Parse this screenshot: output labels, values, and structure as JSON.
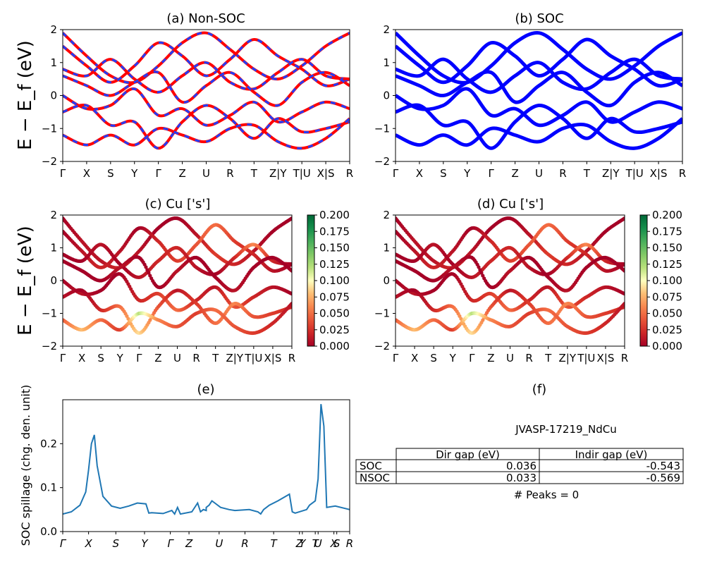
{
  "figure": {
    "panel_a_title": "(a) Non-SOC",
    "panel_b_title": "(b) SOC",
    "panel_c_title": "(c)  Cu ['s']",
    "panel_d_title": "(d) Cu ['s']",
    "panel_e_title": "(e)",
    "panel_f_title": "(f)",
    "ylabel_bands": "E − E_f (eV)",
    "ylabel_spillage": "SOC spillage (chg. den. unit)"
  },
  "colors": {
    "nonsoc_band": "#ff0000",
    "nonsoc_dash": "#1f3fff",
    "soc_band": "#0000ff",
    "spillage_line": "#1f77b4",
    "colormap": "RdYlGn"
  },
  "chart_data": [
    {
      "type": "line",
      "title": "(a) Non-SOC",
      "ylabel": "E − E_f (eV)",
      "ylim": [
        -2,
        2
      ],
      "yticks": [
        "−2",
        "−1",
        "0",
        "1",
        "2"
      ],
      "kpath_labels": [
        "Γ",
        "X",
        "S",
        "Y",
        "Γ",
        "Z",
        "U",
        "R",
        "T",
        "Z|Y",
        "T|U",
        "X|S",
        "R"
      ],
      "series": [
        {
          "values": [
            1.9,
            1.2,
            0.6,
            0.4,
            0.9,
            1.6,
            1.9,
            1.4,
            0.8,
            0.5,
            0.9,
            1.5,
            1.9
          ]
        },
        {
          "values": [
            1.5,
            0.9,
            0.4,
            0.9,
            1.6,
            1.2,
            0.6,
            1.1,
            1.7,
            1.2,
            0.8,
            0.3,
            0.5
          ]
        },
        {
          "values": [
            0.8,
            0.6,
            1.1,
            0.5,
            0.1,
            0.6,
            1.0,
            0.4,
            0.2,
            0.7,
            1.1,
            0.6,
            0.5
          ]
        },
        {
          "values": [
            0.6,
            0.3,
            0.0,
            0.4,
            0.7,
            -0.2,
            0.3,
            0.7,
            0.1,
            -0.3,
            0.4,
            0.7,
            0.3
          ]
        },
        {
          "values": [
            0.0,
            -0.4,
            -0.3,
            0.2,
            -0.6,
            -0.4,
            -0.9,
            -0.6,
            -0.2,
            -0.8,
            -0.5,
            -0.2,
            -0.4
          ]
        },
        {
          "values": [
            -0.5,
            -0.3,
            -0.9,
            -0.8,
            -1.6,
            -0.8,
            -0.3,
            -0.7,
            -1.3,
            -0.7,
            -1.1,
            -1.0,
            -0.8
          ]
        },
        {
          "values": [
            -1.2,
            -1.5,
            -1.2,
            -1.5,
            -1.0,
            -1.2,
            -1.4,
            -1.0,
            -0.9,
            -1.4,
            -1.6,
            -1.3,
            -0.7
          ]
        }
      ]
    },
    {
      "type": "line",
      "title": "(b) SOC",
      "ylim": [
        -2,
        2
      ],
      "yticks": [
        "−2",
        "−1",
        "0",
        "1",
        "2"
      ],
      "kpath_labels": [
        "Γ",
        "X",
        "S",
        "Y",
        "Γ",
        "Z",
        "U",
        "R",
        "T",
        "Z|Y",
        "T|U",
        "X|S",
        "R"
      ],
      "series": [
        {
          "values": [
            1.9,
            1.2,
            0.6,
            0.4,
            0.9,
            1.6,
            1.9,
            1.4,
            0.8,
            0.5,
            0.9,
            1.5,
            1.9
          ]
        },
        {
          "values": [
            1.5,
            0.9,
            0.4,
            0.9,
            1.6,
            1.2,
            0.6,
            1.1,
            1.7,
            1.2,
            0.8,
            0.3,
            0.5
          ]
        },
        {
          "values": [
            0.8,
            0.6,
            1.1,
            0.5,
            0.1,
            0.6,
            1.0,
            0.4,
            0.2,
            0.7,
            1.1,
            0.6,
            0.5
          ]
        },
        {
          "values": [
            0.6,
            0.3,
            0.0,
            0.4,
            0.7,
            -0.2,
            0.3,
            0.7,
            0.1,
            -0.3,
            0.4,
            0.7,
            0.3
          ]
        },
        {
          "values": [
            0.0,
            -0.4,
            -0.3,
            0.2,
            -0.6,
            -0.4,
            -0.9,
            -0.6,
            -0.2,
            -0.8,
            -0.5,
            -0.2,
            -0.4
          ]
        },
        {
          "values": [
            -0.5,
            -0.3,
            -0.9,
            -0.8,
            -1.6,
            -0.8,
            -0.3,
            -0.7,
            -1.3,
            -0.7,
            -1.1,
            -1.0,
            -0.8
          ]
        },
        {
          "values": [
            -1.2,
            -1.5,
            -1.2,
            -1.5,
            -1.0,
            -1.2,
            -1.4,
            -1.0,
            -0.9,
            -1.4,
            -1.6,
            -1.3,
            -0.7
          ]
        }
      ]
    },
    {
      "type": "scatter",
      "title": "(c)  Cu ['s']",
      "ylabel": "E − E_f (eV)",
      "ylim": [
        -2,
        2
      ],
      "yticks": [
        "−2",
        "−1",
        "0",
        "1",
        "2"
      ],
      "kpath_labels": [
        "Γ",
        "X",
        "S",
        "Y",
        "Γ",
        "Z",
        "U",
        "R",
        "T",
        "Z|Y",
        "T|U",
        "X|S",
        "R"
      ],
      "colorbar": {
        "min": 0.0,
        "max": 0.2,
        "ticks": [
          "0.000",
          "0.025",
          "0.050",
          "0.075",
          "0.100",
          "0.125",
          "0.150",
          "0.175",
          "0.200"
        ]
      },
      "series": [
        {
          "values": [
            1.9,
            1.2,
            0.6,
            0.4,
            0.9,
            1.6,
            1.9,
            1.4,
            0.8,
            0.5,
            0.9,
            1.5,
            1.9
          ],
          "weights": [
            0.0,
            0.01,
            0.01,
            0.02,
            0.01,
            0.0,
            0.0,
            0.01,
            0.03,
            0.02,
            0.01,
            0.0,
            0.0
          ]
        },
        {
          "values": [
            1.5,
            0.9,
            0.4,
            0.9,
            1.6,
            1.2,
            0.6,
            1.1,
            1.7,
            1.2,
            0.8,
            0.3,
            0.5
          ],
          "weights": [
            0.0,
            0.01,
            0.02,
            0.01,
            0.0,
            0.02,
            0.03,
            0.04,
            0.05,
            0.03,
            0.02,
            0.01,
            0.0
          ]
        },
        {
          "values": [
            0.8,
            0.6,
            1.1,
            0.5,
            0.1,
            0.6,
            1.0,
            0.4,
            0.2,
            0.7,
            1.1,
            0.6,
            0.5
          ],
          "weights": [
            0.0,
            0.0,
            0.01,
            0.0,
            0.01,
            0.02,
            0.02,
            0.01,
            0.0,
            0.02,
            0.06,
            0.02,
            0.0
          ]
        },
        {
          "values": [
            0.6,
            0.3,
            0.0,
            0.4,
            0.7,
            -0.2,
            0.3,
            0.7,
            0.1,
            -0.3,
            0.4,
            0.7,
            0.3
          ],
          "weights": [
            0.0,
            0.0,
            0.0,
            0.01,
            0.0,
            0.0,
            0.01,
            0.0,
            0.0,
            0.01,
            0.0,
            0.0,
            0.0
          ]
        },
        {
          "values": [
            0.0,
            -0.4,
            -0.3,
            0.2,
            -0.6,
            -0.4,
            -0.9,
            -0.6,
            -0.2,
            -0.8,
            -0.5,
            -0.2,
            -0.4
          ],
          "weights": [
            0.0,
            0.01,
            0.0,
            0.0,
            0.02,
            0.03,
            0.05,
            0.02,
            0.01,
            0.04,
            0.02,
            0.01,
            0.0
          ]
        },
        {
          "values": [
            -0.5,
            -0.3,
            -0.9,
            -0.8,
            -1.6,
            -0.8,
            -0.3,
            -0.7,
            -1.3,
            -0.7,
            -1.1,
            -1.0,
            -0.8
          ],
          "weights": [
            0.01,
            0.0,
            0.02,
            0.05,
            0.09,
            0.04,
            0.01,
            0.03,
            0.05,
            0.06,
            0.04,
            0.03,
            0.02
          ]
        },
        {
          "values": [
            -1.2,
            -1.5,
            -1.2,
            -1.5,
            -1.0,
            -1.2,
            -1.4,
            -1.0,
            -0.9,
            -1.4,
            -1.6,
            -1.3,
            -0.7
          ],
          "weights": [
            0.04,
            0.08,
            0.05,
            0.03,
            0.12,
            0.06,
            0.04,
            0.03,
            0.05,
            0.04,
            0.03,
            0.02,
            0.01
          ]
        }
      ]
    },
    {
      "type": "scatter",
      "title": "(d) Cu ['s']",
      "ylim": [
        -2,
        2
      ],
      "yticks": [
        "−2",
        "−1",
        "0",
        "1",
        "2"
      ],
      "kpath_labels": [
        "Γ",
        "X",
        "S",
        "Y",
        "Γ",
        "Z",
        "U",
        "R",
        "T",
        "Z|Y",
        "T|U",
        "X|S",
        "R"
      ],
      "colorbar": {
        "min": 0.0,
        "max": 0.2,
        "ticks": [
          "0.000",
          "0.025",
          "0.050",
          "0.075",
          "0.100",
          "0.125",
          "0.150",
          "0.175",
          "0.200"
        ]
      },
      "series": [
        {
          "values": [
            1.9,
            1.2,
            0.6,
            0.4,
            0.9,
            1.6,
            1.9,
            1.4,
            0.8,
            0.5,
            0.9,
            1.5,
            1.9
          ],
          "weights": [
            0.0,
            0.01,
            0.01,
            0.02,
            0.01,
            0.0,
            0.0,
            0.01,
            0.03,
            0.02,
            0.01,
            0.0,
            0.0
          ]
        },
        {
          "values": [
            1.5,
            0.9,
            0.4,
            0.9,
            1.6,
            1.2,
            0.6,
            1.1,
            1.7,
            1.2,
            0.8,
            0.3,
            0.5
          ],
          "weights": [
            0.0,
            0.01,
            0.02,
            0.01,
            0.0,
            0.02,
            0.03,
            0.04,
            0.05,
            0.03,
            0.02,
            0.01,
            0.0
          ]
        },
        {
          "values": [
            0.8,
            0.6,
            1.1,
            0.5,
            0.1,
            0.6,
            1.0,
            0.4,
            0.2,
            0.7,
            1.1,
            0.6,
            0.5
          ],
          "weights": [
            0.0,
            0.0,
            0.01,
            0.0,
            0.01,
            0.02,
            0.02,
            0.01,
            0.0,
            0.02,
            0.06,
            0.02,
            0.0
          ]
        },
        {
          "values": [
            0.6,
            0.3,
            0.0,
            0.4,
            0.7,
            -0.2,
            0.3,
            0.7,
            0.1,
            -0.3,
            0.4,
            0.7,
            0.3
          ],
          "weights": [
            0.0,
            0.0,
            0.0,
            0.01,
            0.0,
            0.0,
            0.01,
            0.0,
            0.0,
            0.01,
            0.0,
            0.0,
            0.0
          ]
        },
        {
          "values": [
            0.0,
            -0.4,
            -0.3,
            0.2,
            -0.6,
            -0.4,
            -0.9,
            -0.6,
            -0.2,
            -0.8,
            -0.5,
            -0.2,
            -0.4
          ],
          "weights": [
            0.0,
            0.01,
            0.0,
            0.0,
            0.02,
            0.03,
            0.05,
            0.02,
            0.01,
            0.04,
            0.02,
            0.01,
            0.0
          ]
        },
        {
          "values": [
            -0.5,
            -0.3,
            -0.9,
            -0.8,
            -1.6,
            -0.8,
            -0.3,
            -0.7,
            -1.3,
            -0.7,
            -1.1,
            -1.0,
            -0.8
          ],
          "weights": [
            0.01,
            0.0,
            0.02,
            0.05,
            0.09,
            0.04,
            0.01,
            0.03,
            0.05,
            0.06,
            0.04,
            0.03,
            0.02
          ]
        },
        {
          "values": [
            -1.2,
            -1.5,
            -1.2,
            -1.5,
            -1.0,
            -1.2,
            -1.4,
            -1.0,
            -0.9,
            -1.4,
            -1.6,
            -1.3,
            -0.7
          ],
          "weights": [
            0.04,
            0.08,
            0.05,
            0.03,
            0.12,
            0.06,
            0.04,
            0.03,
            0.05,
            0.04,
            0.03,
            0.02,
            0.01
          ]
        }
      ]
    },
    {
      "type": "line",
      "title": "(e)",
      "ylabel": "SOC spillage (chg. den. unit)",
      "ylim": [
        0,
        0.3
      ],
      "yticks": [
        "0.0",
        "0.1",
        "0.2"
      ],
      "kpath_labels": [
        "Γ",
        "X",
        "S",
        "Y",
        "Γ",
        "Z",
        "U",
        "R",
        "T",
        "Z",
        "Y",
        "T",
        "U",
        "X",
        "S",
        "R"
      ],
      "x": [
        0,
        0.03,
        0.06,
        0.08,
        0.09,
        0.1,
        0.11,
        0.12,
        0.14,
        0.17,
        0.2,
        0.23,
        0.26,
        0.29,
        0.3,
        0.31,
        0.35,
        0.38,
        0.39,
        0.4,
        0.41,
        0.45,
        0.47,
        0.48,
        0.49,
        0.5,
        0.5,
        0.51,
        0.52,
        0.53,
        0.55,
        0.58,
        0.6,
        0.65,
        0.68,
        0.69,
        0.7,
        0.72,
        0.75,
        0.79,
        0.8,
        0.81,
        0.85,
        0.86,
        0.88,
        0.89,
        0.9,
        0.91,
        0.92,
        0.95,
        1.0
      ],
      "y": [
        0.04,
        0.045,
        0.06,
        0.09,
        0.14,
        0.2,
        0.22,
        0.15,
        0.08,
        0.058,
        0.053,
        0.058,
        0.065,
        0.063,
        0.042,
        0.043,
        0.041,
        0.048,
        0.04,
        0.055,
        0.04,
        0.045,
        0.065,
        0.045,
        0.05,
        0.048,
        0.055,
        0.06,
        0.07,
        0.065,
        0.055,
        0.05,
        0.048,
        0.05,
        0.045,
        0.04,
        0.05,
        0.06,
        0.07,
        0.085,
        0.045,
        0.042,
        0.05,
        0.06,
        0.07,
        0.12,
        0.29,
        0.24,
        0.055,
        0.058,
        0.05
      ]
    },
    {
      "type": "table",
      "title": "(f)",
      "caption": "JVASP-17219_NdCu",
      "columns": [
        "",
        "Dir gap (eV)",
        "Indir gap (eV)"
      ],
      "rows": [
        [
          "SOC",
          "0.036",
          "-0.543"
        ],
        [
          "NSOC",
          "0.033",
          "-0.569"
        ]
      ],
      "footer": "# Peaks = 0"
    }
  ]
}
